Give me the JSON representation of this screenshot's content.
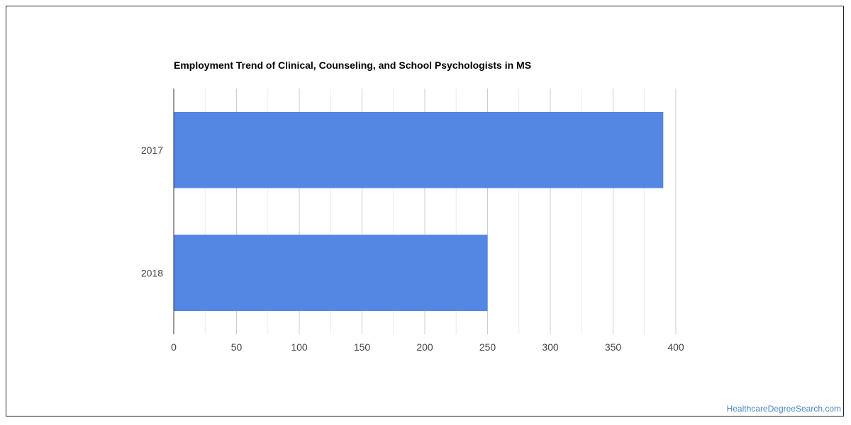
{
  "chart_data": {
    "type": "bar",
    "orientation": "horizontal",
    "title": "Employment Trend of Clinical, Counseling, and School Psychologists in MS",
    "categories": [
      "2017",
      "2018"
    ],
    "values": [
      390,
      250
    ],
    "xlim": [
      0,
      400
    ],
    "x_ticks": [
      0,
      50,
      100,
      150,
      200,
      250,
      300,
      350,
      400
    ],
    "grid": true,
    "bar_color": "#5486e3",
    "legend": "none"
  },
  "footer": {
    "watermark": "HealthcareDegreeSearch.com"
  }
}
